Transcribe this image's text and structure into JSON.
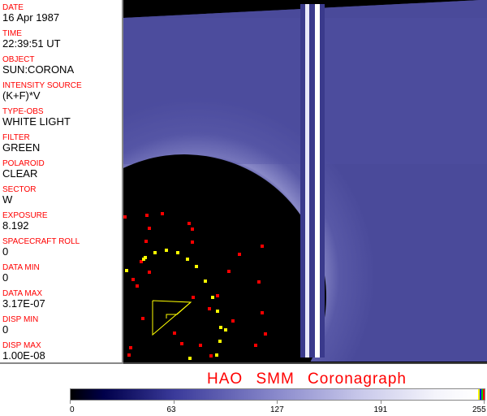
{
  "fields": [
    {
      "label": "DATE",
      "value": "16 Apr 1987"
    },
    {
      "label": "TIME",
      "value": "22:39:51 UT"
    },
    {
      "label": "OBJECT",
      "value": "SUN:CORONA"
    },
    {
      "label": "INTENSITY SOURCE",
      "value": "(K+F)*V"
    },
    {
      "label": "TYPE-OBS",
      "value": "WHITE LIGHT"
    },
    {
      "label": "FILTER",
      "value": "GREEN"
    },
    {
      "label": "POLAROID",
      "value": "CLEAR"
    },
    {
      "label": "SECTOR",
      "value": "W"
    },
    {
      "label": "EXPOSURE",
      "value": "8.192"
    },
    {
      "label": "SPACECRAFT ROLL",
      "value": "0"
    },
    {
      "label": "DATA MIN",
      "value": "0"
    },
    {
      "label": "DATA MAX",
      "value": "3.17E-07"
    },
    {
      "label": "DISP MIN",
      "value": "0"
    },
    {
      "label": "DISP MAX",
      "value": "1.00E-08"
    }
  ],
  "title": "HAO  SMM Coronagraph",
  "colorbar": {
    "ticks": [
      "0",
      "63",
      "127",
      "191",
      "255"
    ],
    "colors": [
      "#000000",
      "#3a3a9a",
      "#8a8acc",
      "#ffffff"
    ],
    "marker_colors": [
      "#ffff00",
      "#0000ff",
      "#00c000",
      "#ff0000"
    ]
  }
}
